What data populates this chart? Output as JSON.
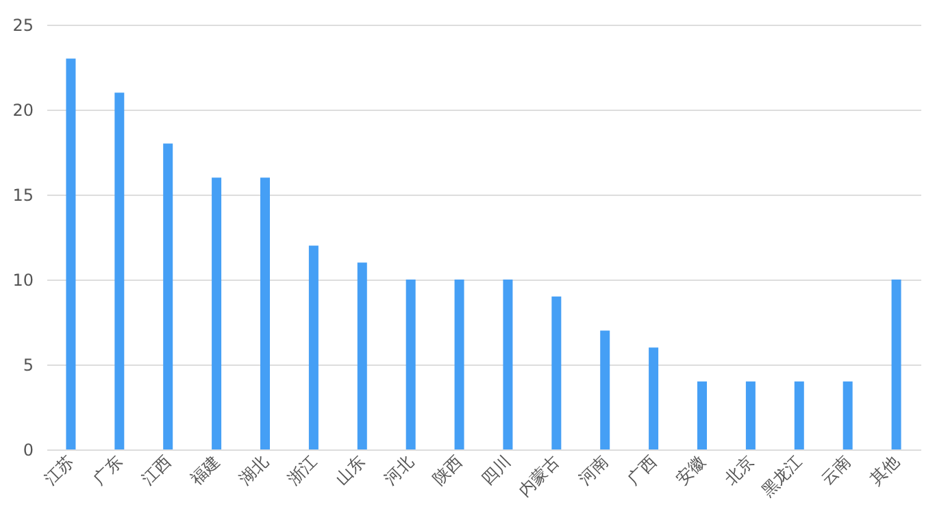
{
  "chart_data": {
    "type": "bar",
    "categories": [
      "江苏",
      "广东",
      "江西",
      "福建",
      "湖北",
      "浙江",
      "山东",
      "河北",
      "陕西",
      "四川",
      "内蒙古",
      "河南",
      "广西",
      "安徽",
      "北京",
      "黑龙江",
      "云南",
      "其他"
    ],
    "values": [
      23,
      21,
      18,
      16,
      16,
      12,
      11,
      10,
      10,
      10,
      9,
      7,
      6,
      4,
      4,
      4,
      4,
      10
    ],
    "color": "#459ff5",
    "ylim": [
      0,
      25
    ],
    "yticks": [
      0,
      5,
      10,
      15,
      20,
      25
    ],
    "grid": "y"
  }
}
